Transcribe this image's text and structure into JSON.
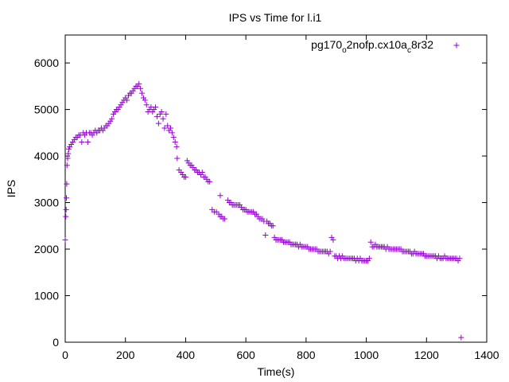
{
  "chart_data": {
    "type": "scatter",
    "title": "IPS vs Time for l.i1",
    "xlabel": "Time(s)",
    "ylabel": "IPS",
    "xlim": [
      0,
      1400
    ],
    "ylim": [
      0,
      6600
    ],
    "xticks": [
      0,
      200,
      400,
      600,
      800,
      1000,
      1200,
      1400
    ],
    "yticks": [
      0,
      1000,
      2000,
      3000,
      4000,
      5000,
      6000
    ],
    "grid": false,
    "legend_position": "top-right",
    "series": [
      {
        "name_parts": [
          "pg170",
          "o",
          "2nofp.cx10a",
          "c",
          "8r32"
        ],
        "color": "#9400d3",
        "marker": "plus",
        "points": [
          [
            0,
            2200
          ],
          [
            2,
            2700
          ],
          [
            3,
            2850
          ],
          [
            4,
            3100
          ],
          [
            5,
            3400
          ],
          [
            6,
            3800
          ],
          [
            8,
            3950
          ],
          [
            10,
            4050
          ],
          [
            12,
            4150
          ],
          [
            15,
            4200
          ],
          [
            20,
            4250
          ],
          [
            25,
            4300
          ],
          [
            30,
            4350
          ],
          [
            35,
            4400
          ],
          [
            40,
            4400
          ],
          [
            45,
            4450
          ],
          [
            50,
            4450
          ],
          [
            55,
            4300
          ],
          [
            60,
            4500
          ],
          [
            65,
            4450
          ],
          [
            70,
            4500
          ],
          [
            75,
            4300
          ],
          [
            80,
            4500
          ],
          [
            85,
            4500
          ],
          [
            90,
            4450
          ],
          [
            95,
            4500
          ],
          [
            100,
            4550
          ],
          [
            105,
            4500
          ],
          [
            110,
            4550
          ],
          [
            115,
            4550
          ],
          [
            120,
            4600
          ],
          [
            125,
            4550
          ],
          [
            130,
            4600
          ],
          [
            135,
            4650
          ],
          [
            140,
            4650
          ],
          [
            145,
            4700
          ],
          [
            150,
            4750
          ],
          [
            155,
            4800
          ],
          [
            160,
            4900
          ],
          [
            165,
            4950
          ],
          [
            170,
            5000
          ],
          [
            175,
            5000
          ],
          [
            180,
            5050
          ],
          [
            185,
            5100
          ],
          [
            190,
            5150
          ],
          [
            195,
            5200
          ],
          [
            200,
            5250
          ],
          [
            205,
            5200
          ],
          [
            210,
            5300
          ],
          [
            215,
            5350
          ],
          [
            220,
            5350
          ],
          [
            225,
            5400
          ],
          [
            230,
            5450
          ],
          [
            235,
            5500
          ],
          [
            240,
            5500
          ],
          [
            245,
            5550
          ],
          [
            250,
            5450
          ],
          [
            255,
            5350
          ],
          [
            260,
            5250
          ],
          [
            265,
            5200
          ],
          [
            270,
            5100
          ],
          [
            275,
            4950
          ],
          [
            280,
            5000
          ],
          [
            285,
            5050
          ],
          [
            290,
            4950
          ],
          [
            295,
            5000
          ],
          [
            300,
            5050
          ],
          [
            305,
            4850
          ],
          [
            310,
            4700
          ],
          [
            315,
            4900
          ],
          [
            320,
            4950
          ],
          [
            325,
            4800
          ],
          [
            330,
            4600
          ],
          [
            335,
            4900
          ],
          [
            340,
            4650
          ],
          [
            345,
            4550
          ],
          [
            350,
            4600
          ],
          [
            355,
            4500
          ],
          [
            360,
            4400
          ],
          [
            365,
            4300
          ],
          [
            370,
            4200
          ],
          [
            372,
            3950
          ],
          [
            378,
            3700
          ],
          [
            385,
            3650
          ],
          [
            390,
            3600
          ],
          [
            395,
            3550
          ],
          [
            400,
            3550
          ],
          [
            405,
            3900
          ],
          [
            410,
            3850
          ],
          [
            415,
            3800
          ],
          [
            420,
            3800
          ],
          [
            425,
            3750
          ],
          [
            430,
            3700
          ],
          [
            435,
            3700
          ],
          [
            440,
            3650
          ],
          [
            445,
            3650
          ],
          [
            450,
            3600
          ],
          [
            455,
            3650
          ],
          [
            460,
            3550
          ],
          [
            465,
            3550
          ],
          [
            470,
            3500
          ],
          [
            475,
            3450
          ],
          [
            480,
            3450
          ],
          [
            488,
            2850
          ],
          [
            495,
            2800
          ],
          [
            502,
            2800
          ],
          [
            510,
            2750
          ],
          [
            515,
            2700
          ],
          [
            520,
            2700
          ],
          [
            525,
            2650
          ],
          [
            530,
            2650
          ],
          [
            515,
            3150
          ],
          [
            540,
            3050
          ],
          [
            545,
            3000
          ],
          [
            550,
            3000
          ],
          [
            555,
            2950
          ],
          [
            560,
            2950
          ],
          [
            565,
            2950
          ],
          [
            570,
            2950
          ],
          [
            575,
            2950
          ],
          [
            580,
            2950
          ],
          [
            585,
            2900
          ],
          [
            590,
            2850
          ],
          [
            595,
            2850
          ],
          [
            600,
            2850
          ],
          [
            605,
            2800
          ],
          [
            610,
            2800
          ],
          [
            615,
            2800
          ],
          [
            620,
            2800
          ],
          [
            625,
            2800
          ],
          [
            630,
            2750
          ],
          [
            635,
            2750
          ],
          [
            640,
            2700
          ],
          [
            645,
            2650
          ],
          [
            650,
            2650
          ],
          [
            655,
            2650
          ],
          [
            660,
            2600
          ],
          [
            665,
            2300
          ],
          [
            670,
            2600
          ],
          [
            675,
            2550
          ],
          [
            680,
            2550
          ],
          [
            685,
            2500
          ],
          [
            690,
            2500
          ],
          [
            695,
            2250
          ],
          [
            700,
            2200
          ],
          [
            705,
            2200
          ],
          [
            710,
            2200
          ],
          [
            715,
            2200
          ],
          [
            720,
            2200
          ],
          [
            725,
            2150
          ],
          [
            730,
            2150
          ],
          [
            735,
            2150
          ],
          [
            740,
            2150
          ],
          [
            745,
            2150
          ],
          [
            750,
            2100
          ],
          [
            755,
            2100
          ],
          [
            760,
            2100
          ],
          [
            765,
            2100
          ],
          [
            770,
            2100
          ],
          [
            775,
            2050
          ],
          [
            780,
            2100
          ],
          [
            785,
            2050
          ],
          [
            790,
            2050
          ],
          [
            795,
            2050
          ],
          [
            800,
            2050
          ],
          [
            805,
            2050
          ],
          [
            810,
            2000
          ],
          [
            815,
            2000
          ],
          [
            820,
            2000
          ],
          [
            825,
            2000
          ],
          [
            830,
            2000
          ],
          [
            835,
            2000
          ],
          [
            840,
            1950
          ],
          [
            845,
            1950
          ],
          [
            850,
            1950
          ],
          [
            855,
            1950
          ],
          [
            860,
            1950
          ],
          [
            865,
            1950
          ],
          [
            870,
            1950
          ],
          [
            875,
            1900
          ],
          [
            880,
            1950
          ],
          [
            885,
            2250
          ],
          [
            890,
            2200
          ],
          [
            895,
            1850
          ],
          [
            900,
            1850
          ],
          [
            905,
            1800
          ],
          [
            910,
            1850
          ],
          [
            915,
            1800
          ],
          [
            920,
            1850
          ],
          [
            925,
            1800
          ],
          [
            930,
            1800
          ],
          [
            935,
            1800
          ],
          [
            940,
            1800
          ],
          [
            945,
            1800
          ],
          [
            950,
            1800
          ],
          [
            955,
            1800
          ],
          [
            960,
            1800
          ],
          [
            965,
            1750
          ],
          [
            970,
            1800
          ],
          [
            975,
            1750
          ],
          [
            980,
            1800
          ],
          [
            985,
            1750
          ],
          [
            990,
            1750
          ],
          [
            995,
            1750
          ],
          [
            1000,
            1750
          ],
          [
            1005,
            1750
          ],
          [
            1010,
            1800
          ],
          [
            1015,
            2150
          ],
          [
            1020,
            2050
          ],
          [
            1025,
            2050
          ],
          [
            1030,
            2100
          ],
          [
            1035,
            2050
          ],
          [
            1040,
            2050
          ],
          [
            1045,
            2050
          ],
          [
            1050,
            2050
          ],
          [
            1055,
            2050
          ],
          [
            1060,
            2050
          ],
          [
            1065,
            2000
          ],
          [
            1070,
            2050
          ],
          [
            1075,
            2000
          ],
          [
            1080,
            2000
          ],
          [
            1085,
            2000
          ],
          [
            1090,
            2000
          ],
          [
            1095,
            2000
          ],
          [
            1100,
            2000
          ],
          [
            1105,
            2000
          ],
          [
            1110,
            2000
          ],
          [
            1115,
            2000
          ],
          [
            1120,
            1950
          ],
          [
            1125,
            1950
          ],
          [
            1130,
            1950
          ],
          [
            1135,
            1950
          ],
          [
            1140,
            1950
          ],
          [
            1145,
            1950
          ],
          [
            1150,
            1900
          ],
          [
            1155,
            1900
          ],
          [
            1160,
            1950
          ],
          [
            1165,
            1900
          ],
          [
            1170,
            1900
          ],
          [
            1175,
            1900
          ],
          [
            1180,
            1900
          ],
          [
            1185,
            1900
          ],
          [
            1190,
            1900
          ],
          [
            1195,
            1850
          ],
          [
            1200,
            1850
          ],
          [
            1205,
            1850
          ],
          [
            1210,
            1850
          ],
          [
            1215,
            1850
          ],
          [
            1220,
            1850
          ],
          [
            1225,
            1850
          ],
          [
            1230,
            1850
          ],
          [
            1235,
            1800
          ],
          [
            1240,
            1850
          ],
          [
            1245,
            1800
          ],
          [
            1250,
            1800
          ],
          [
            1255,
            1800
          ],
          [
            1260,
            1850
          ],
          [
            1265,
            1800
          ],
          [
            1270,
            1800
          ],
          [
            1275,
            1800
          ],
          [
            1280,
            1800
          ],
          [
            1285,
            1800
          ],
          [
            1290,
            1800
          ],
          [
            1295,
            1800
          ],
          [
            1300,
            1800
          ],
          [
            1305,
            1750
          ],
          [
            1310,
            1800
          ],
          [
            1315,
            100
          ]
        ]
      }
    ]
  }
}
